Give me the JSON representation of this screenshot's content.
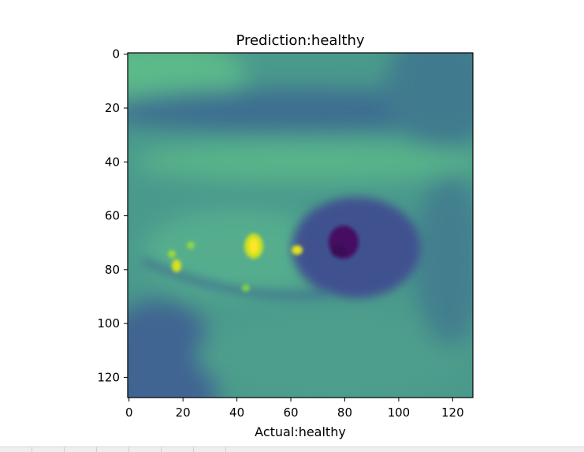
{
  "chart_data": {
    "type": "heatmap",
    "title": "Prediction:healthy",
    "xlabel": "Actual:healthy",
    "ylabel": "",
    "xlim": [
      0,
      127
    ],
    "ylim": [
      127,
      0
    ],
    "xticks": [
      0,
      20,
      40,
      60,
      80,
      100,
      120
    ],
    "yticks": [
      0,
      20,
      40,
      60,
      80,
      100,
      120
    ],
    "xtick_labels": [
      "0",
      "20",
      "40",
      "60",
      "80",
      "100",
      "120"
    ],
    "ytick_labels": [
      "0",
      "20",
      "40",
      "60",
      "80",
      "100",
      "120"
    ],
    "colormap": "viridis",
    "image_size": [
      128,
      128
    ],
    "grid": false,
    "content": "grayscale eye image rendered with viridis colormap"
  }
}
